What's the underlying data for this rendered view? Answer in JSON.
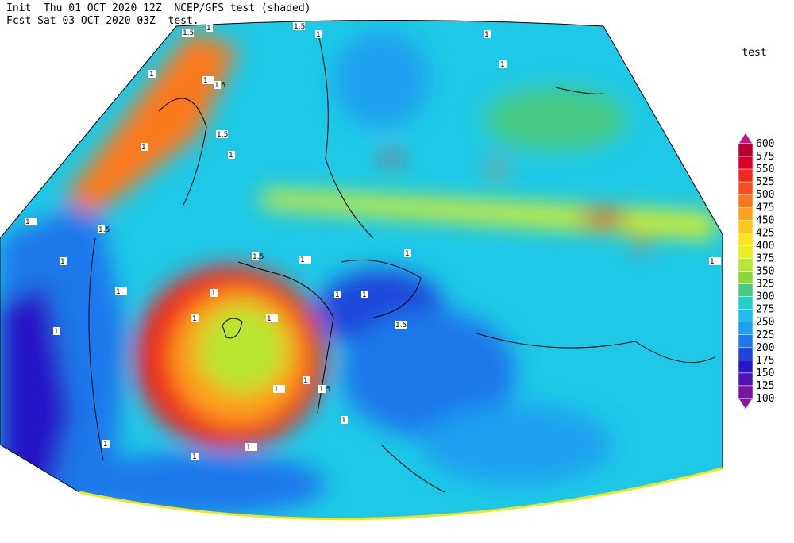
{
  "header": {
    "line1": "Init  Thu 01 OCT 2020 12Z  NCEP/GFS test (shaded)",
    "line2": "Fcst Sat 03 OCT 2020 03Z  test."
  },
  "colorbar": {
    "title": "test",
    "levels": [
      600,
      575,
      550,
      525,
      500,
      475,
      450,
      425,
      400,
      375,
      350,
      325,
      300,
      275,
      250,
      225,
      200,
      175,
      150,
      125,
      100
    ],
    "colors": [
      "#c8148c",
      "#b40032",
      "#dc0028",
      "#f0281e",
      "#f5501e",
      "#fa781e",
      "#fca01e",
      "#fcc81e",
      "#fae61e",
      "#e6f01e",
      "#b9e632",
      "#8cd73c",
      "#46c882",
      "#1ed2c8",
      "#1ebef0",
      "#1ea0f0",
      "#1e78eb",
      "#1e46dc",
      "#2818c8",
      "#5014b4",
      "#7814a0",
      "#8c14a0"
    ]
  },
  "contour_labels": [
    "1.5",
    "1",
    "1",
    "1.5",
    "1",
    "1",
    "1.5",
    "1.5",
    "1",
    "1",
    "1",
    "1",
    "1",
    "1.5",
    "1",
    "1",
    "1",
    "1",
    "1",
    "1",
    "1.5",
    "1",
    "1",
    "1",
    "1",
    "1",
    "1",
    "1.5",
    "1",
    "1.5",
    "1",
    "1",
    "1",
    "1"
  ]
}
